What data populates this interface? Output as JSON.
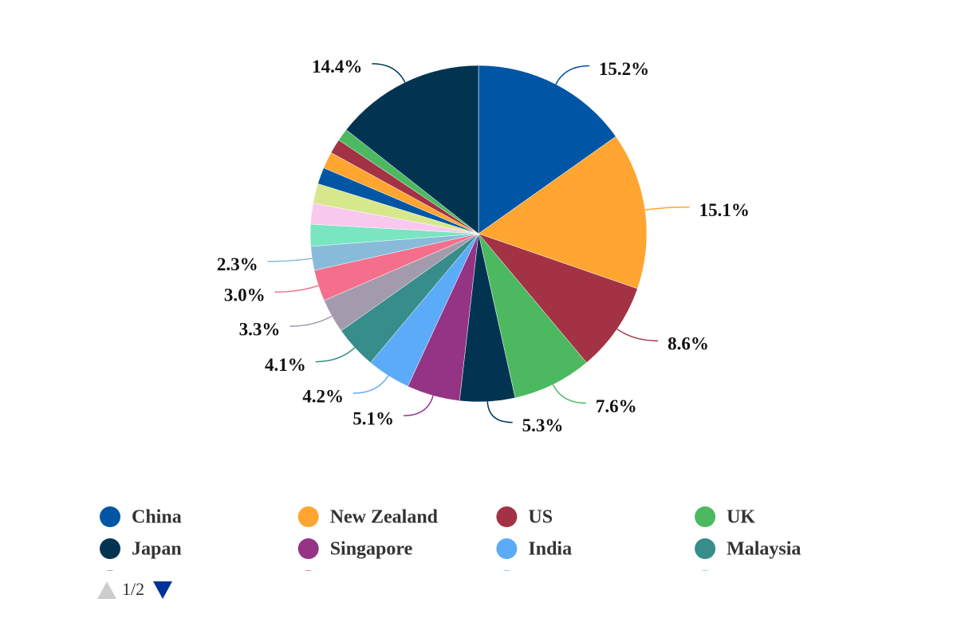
{
  "chart_data": {
    "type": "pie",
    "categories": [
      "China",
      "New Zealand",
      "US",
      "UK",
      "Japan",
      "Singapore",
      "India",
      "Malaysia",
      null,
      null,
      null,
      null,
      null,
      null,
      null,
      null,
      null,
      null,
      null
    ],
    "values": [
      15.2,
      15.1,
      8.6,
      7.6,
      5.3,
      5.1,
      4.2,
      4.1,
      3.3,
      3.0,
      2.3,
      2.1,
      2.0,
      1.9,
      1.6,
      1.6,
      1.4,
      1.2,
      14.4
    ],
    "value_labels": [
      "15.2%",
      "15.1%",
      "8.6%",
      "7.6%",
      "5.3%",
      "5.1%",
      "4.2%",
      "4.1%",
      "3.3%",
      "3.0%",
      "2.3%",
      null,
      null,
      null,
      null,
      null,
      null,
      null,
      "14.4%"
    ],
    "colors": [
      "#0056a4",
      "#ffa530",
      "#a33344",
      "#4cb960",
      "#023452",
      "#953385",
      "#5cabf8",
      "#368d8a",
      "#a39bad",
      "#f46f8b",
      "#87bbd9",
      "#79e5c1",
      "#f9c8ef",
      "#d6e88b",
      "#0056a4",
      "#ffa530",
      "#a33344",
      "#4cb960",
      "#023452"
    ],
    "legend_page": "1/2"
  }
}
